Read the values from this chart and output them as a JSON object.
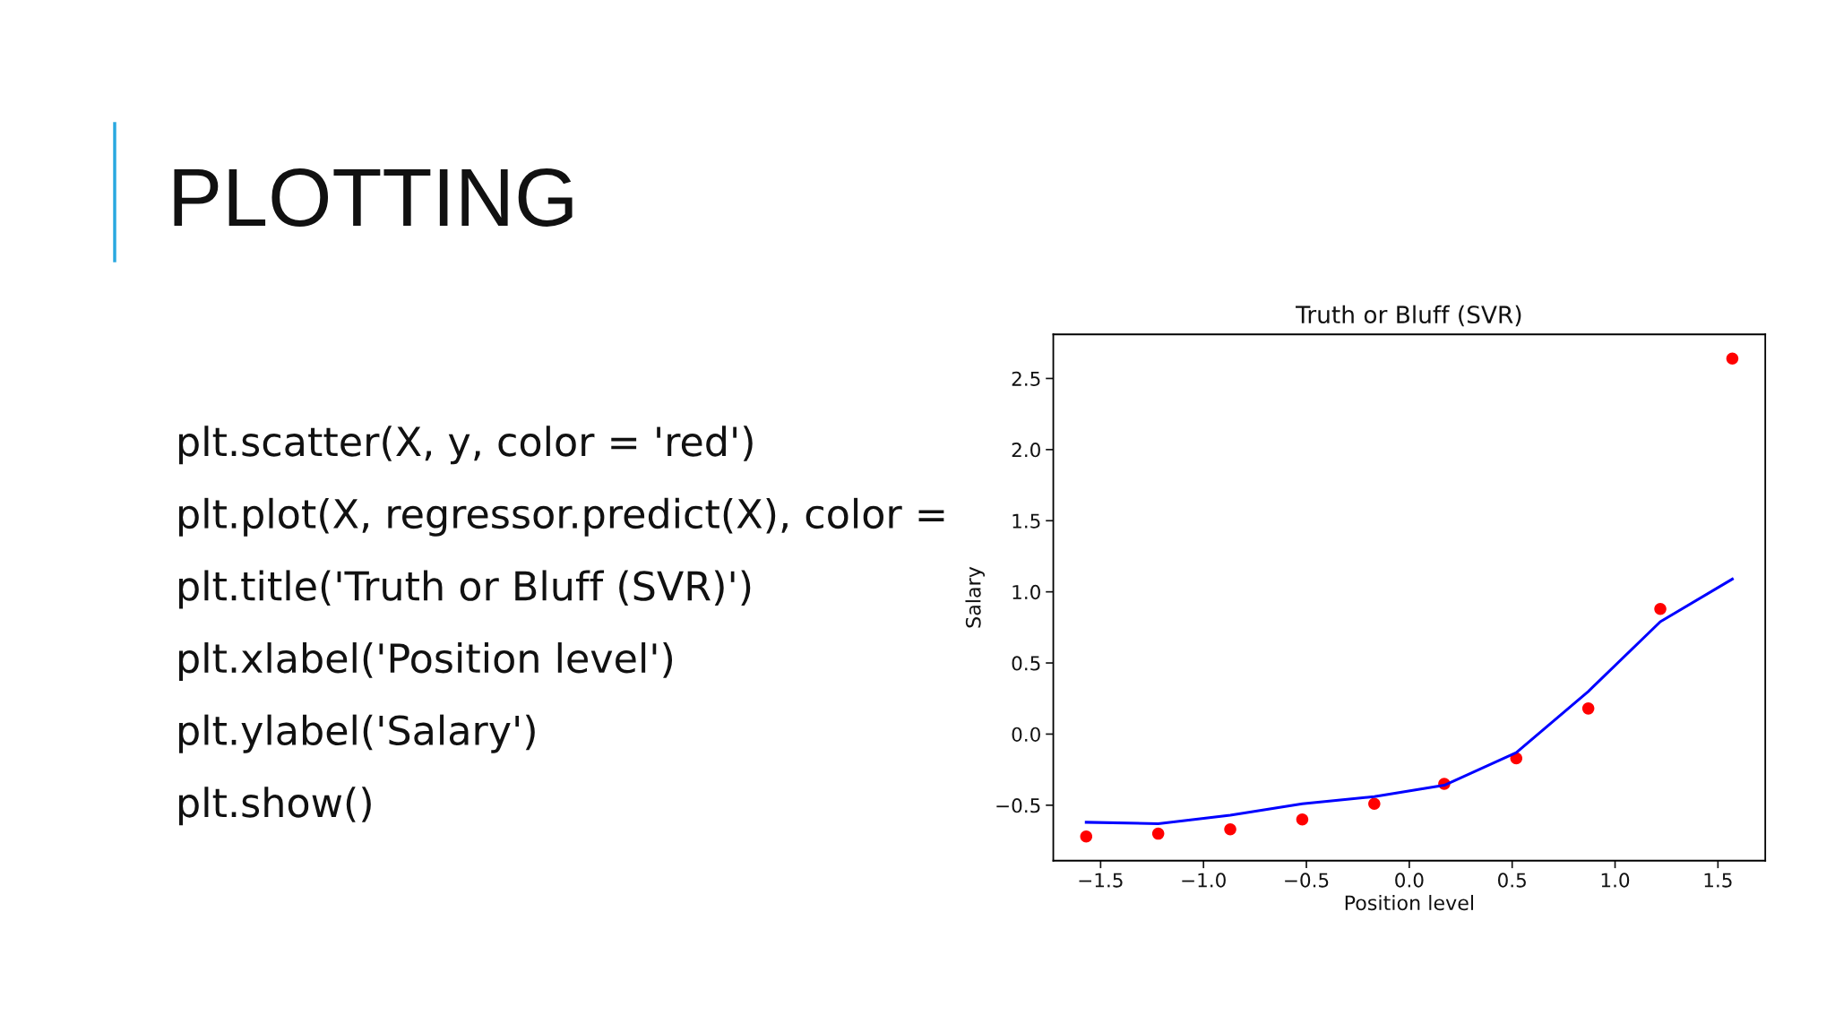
{
  "chart_data": {
    "type": "scatter",
    "title": "Truth or Bluff (SVR)",
    "xlabel": "Position level",
    "ylabel": "Salary",
    "annotations": [
      "PLOTTING",
      "plt.scatter(X, y, color = 'red')",
      "plt.plot(X, regressor.predict(X), color =",
      "plt.title('Truth or Bluff (SVR)')",
      "plt.xlabel('Position level')",
      "plt.ylabel('Salary')",
      "plt.show()"
    ],
    "series": [
      {
        "color": "#ff0000",
        "marker": "circle",
        "x": [
          -1.57,
          -1.22,
          -0.87,
          -0.52,
          -0.17,
          0.17,
          0.52,
          0.87,
          1.22,
          1.57
        ],
        "values": [
          -0.72,
          -0.7,
          -0.67,
          -0.6,
          -0.49,
          -0.35,
          -0.17,
          0.18,
          0.88,
          2.64
        ]
      },
      {
        "type": "line",
        "color": "#0000ff",
        "line_style": "solid",
        "x": [
          -1.57,
          -1.22,
          -0.87,
          -0.52,
          -0.17,
          0.17,
          0.52,
          0.87,
          1.22,
          1.57
        ],
        "values": [
          -0.62,
          -0.63,
          -0.57,
          -0.49,
          -0.44,
          -0.36,
          -0.13,
          0.3,
          0.79,
          1.09
        ]
      }
    ],
    "xlim": [
      -1.73,
      1.73
    ],
    "ylim": [
      -0.89,
      2.81
    ],
    "xticks": [
      {
        "value": -1.5,
        "label": "−1.5"
      },
      {
        "value": -1.0,
        "label": "−1.0"
      },
      {
        "value": -0.5,
        "label": "−0.5"
      },
      {
        "value": 0.0,
        "label": "0.0"
      },
      {
        "value": 0.5,
        "label": "0.5"
      },
      {
        "value": 1.0,
        "label": "1.0"
      },
      {
        "value": 1.5,
        "label": "1.5"
      }
    ],
    "yticks": [
      {
        "value": -0.5,
        "label": "−0.5"
      },
      {
        "value": 0.0,
        "label": "0.0"
      },
      {
        "value": 0.5,
        "label": "0.5"
      },
      {
        "value": 1.0,
        "label": "1.0"
      },
      {
        "value": 1.5,
        "label": "1.5"
      },
      {
        "value": 2.0,
        "label": "2.0"
      },
      {
        "value": 2.5,
        "label": "2.5"
      }
    ],
    "grid": false
  }
}
